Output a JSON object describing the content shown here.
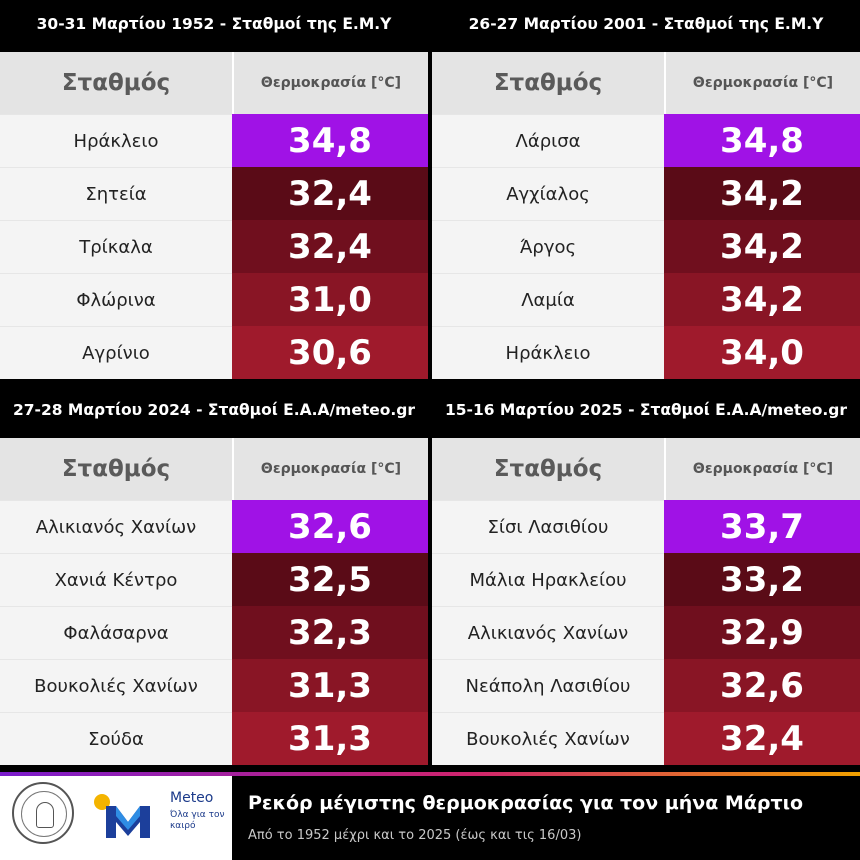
{
  "header_station": "Σταθμός",
  "header_temp": "Θερμοκρασία [°C]",
  "panels": [
    {
      "title": "30-31 Μαρτίου 1952 - Σταθμοί της Ε.Μ.Υ",
      "rows": [
        {
          "station": "Ηράκλειο",
          "temp": "34,8"
        },
        {
          "station": "Σητεία",
          "temp": "32,4"
        },
        {
          "station": "Τρίκαλα",
          "temp": "32,4"
        },
        {
          "station": "Φλώρινα",
          "temp": "31,0"
        },
        {
          "station": "Αγρίνιο",
          "temp": "30,6"
        }
      ]
    },
    {
      "title": "26-27 Μαρτίου 2001 - Σταθμοί της Ε.Μ.Υ",
      "rows": [
        {
          "station": "Λάρισα",
          "temp": "34,8"
        },
        {
          "station": "Αγχίαλος",
          "temp": "34,2"
        },
        {
          "station": "Άργος",
          "temp": "34,2"
        },
        {
          "station": "Λαμία",
          "temp": "34,2"
        },
        {
          "station": "Ηράκλειο",
          "temp": "34,0"
        }
      ]
    },
    {
      "title": "27-28 Μαρτίου 2024 - Σταθμοί Ε.Α.Α/meteo.gr",
      "rows": [
        {
          "station": "Αλικιανός Χανίων",
          "temp": "32,6"
        },
        {
          "station": "Χανιά Κέντρο",
          "temp": "32,5"
        },
        {
          "station": "Φαλάσαρνα",
          "temp": "32,3"
        },
        {
          "station": "Βουκολιές Χανίων",
          "temp": "31,3"
        },
        {
          "station": "Σούδα",
          "temp": "31,3"
        }
      ]
    },
    {
      "title": "15-16 Μαρτίου 2025 - Σταθμοί Ε.Α.Α/meteo.gr",
      "rows": [
        {
          "station": "Σίσι Λασιθίου",
          "temp": "33,7"
        },
        {
          "station": "Μάλια Ηρακλείου",
          "temp": "33,2"
        },
        {
          "station": "Αλικιανός Χανίων",
          "temp": "32,9"
        },
        {
          "station": "Νεάπολη Λασιθίου",
          "temp": "32,6"
        },
        {
          "station": "Βουκολιές Χανίων",
          "temp": "32,4"
        }
      ]
    }
  ],
  "row_colors": [
    "#a012e6",
    "#5a0b17",
    "#700f1e",
    "#891525",
    "#9f1a2c"
  ],
  "footer": {
    "title": "Ρεκόρ μέγιστης θερμοκρασίας για τον μήνα Μάρτιο",
    "subtitle": "Από το 1952 μέχρι και το 2025 (έως και τις 16/03)",
    "meteo_name": "Meteo",
    "meteo_tagline": "Όλα για τον καιρό"
  }
}
